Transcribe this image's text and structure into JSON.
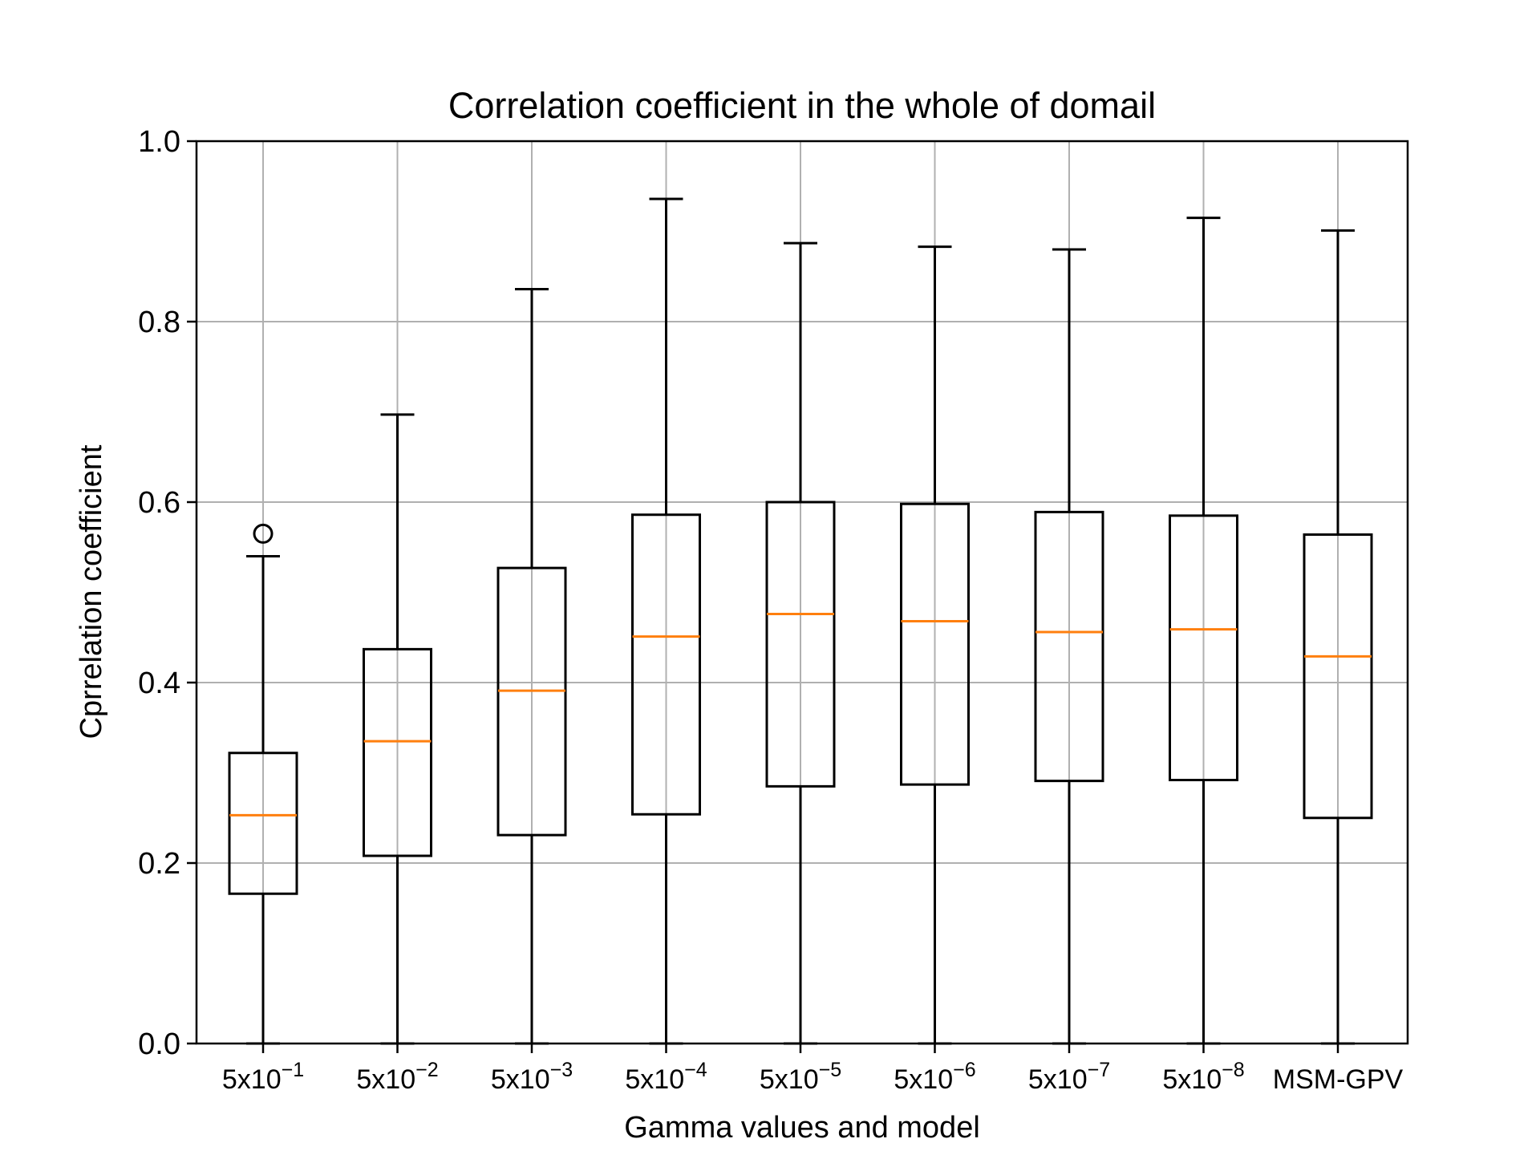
{
  "chart_data": {
    "type": "box",
    "title": "Correlation coefficient in the whole of domail",
    "xlabel": "Gamma values and model",
    "ylabel": "Cprrelation coefficient",
    "ylim": [
      0.0,
      1.0
    ],
    "yticks": [
      "0.0",
      "0.2",
      "0.4",
      "0.6",
      "0.8",
      "1.0"
    ],
    "grid": true,
    "categories": [
      {
        "base": "5x10",
        "exp": "−1"
      },
      {
        "base": "5x10",
        "exp": "−2"
      },
      {
        "base": "5x10",
        "exp": "−3"
      },
      {
        "base": "5x10",
        "exp": "−4"
      },
      {
        "base": "5x10",
        "exp": "−5"
      },
      {
        "base": "5x10",
        "exp": "−6"
      },
      {
        "base": "5x10",
        "exp": "−7"
      },
      {
        "base": "5x10",
        "exp": "−8"
      },
      {
        "base": "MSM-GPV",
        "exp": ""
      }
    ],
    "boxes": [
      {
        "whisker_low": 0.0,
        "q1": 0.166,
        "median": 0.253,
        "q3": 0.322,
        "whisker_high": 0.54,
        "outliers": [
          0.565
        ]
      },
      {
        "whisker_low": 0.0,
        "q1": 0.208,
        "median": 0.335,
        "q3": 0.437,
        "whisker_high": 0.697,
        "outliers": []
      },
      {
        "whisker_low": 0.0,
        "q1": 0.231,
        "median": 0.391,
        "q3": 0.527,
        "whisker_high": 0.836,
        "outliers": []
      },
      {
        "whisker_low": 0.0,
        "q1": 0.254,
        "median": 0.451,
        "q3": 0.586,
        "whisker_high": 0.936,
        "outliers": []
      },
      {
        "whisker_low": 0.0,
        "q1": 0.285,
        "median": 0.476,
        "q3": 0.6,
        "whisker_high": 0.887,
        "outliers": []
      },
      {
        "whisker_low": 0.0,
        "q1": 0.287,
        "median": 0.468,
        "q3": 0.598,
        "whisker_high": 0.883,
        "outliers": []
      },
      {
        "whisker_low": 0.0,
        "q1": 0.291,
        "median": 0.456,
        "q3": 0.589,
        "whisker_high": 0.88,
        "outliers": []
      },
      {
        "whisker_low": 0.0,
        "q1": 0.292,
        "median": 0.459,
        "q3": 0.585,
        "whisker_high": 0.915,
        "outliers": []
      },
      {
        "whisker_low": 0.0,
        "q1": 0.25,
        "median": 0.429,
        "q3": 0.564,
        "whisker_high": 0.901,
        "outliers": []
      }
    ],
    "colors": {
      "box": "#000000",
      "median": "#ff7f0e",
      "grid": "#b0b0b0",
      "axis": "#000000"
    }
  }
}
